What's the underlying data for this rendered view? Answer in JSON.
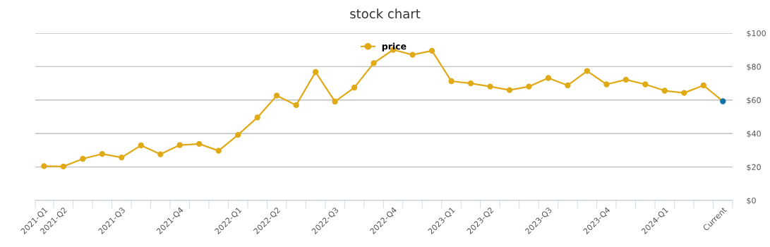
{
  "chart_data": {
    "type": "line",
    "title": "stock chart",
    "categories": [
      "2021-Q1",
      "2021-Q2",
      null,
      null,
      "2021-Q3",
      null,
      null,
      "2021-Q4",
      null,
      null,
      "2022-Q1",
      null,
      "2022-Q2",
      null,
      null,
      "2022-Q3",
      null,
      null,
      "2022-Q4",
      null,
      null,
      "2023-Q1",
      null,
      "2023-Q2",
      null,
      null,
      "2023-Q3",
      null,
      null,
      "2023-Q4",
      null,
      null,
      "2024-Q1",
      null,
      null,
      "Current"
    ],
    "series": [
      {
        "name": "price",
        "color": "#e0a916",
        "colors": [
          "#e0a916",
          "#e0a916",
          "#e0a916",
          "#e0a916",
          "#e0a916",
          "#e0a916",
          "#e0a916",
          "#e0a916",
          "#e0a916",
          "#e0a916",
          "#e0a916",
          "#e0a916",
          "#e0a916",
          "#e0a916",
          "#e0a916",
          "#e0a916",
          "#e0a916",
          "#e0a916",
          "#e0a916",
          "#e0a916",
          "#e0a916",
          "#e0a916",
          "#e0a916",
          "#e0a916",
          "#e0a916",
          "#e0a916",
          "#e0a916",
          "#e0a916",
          "#e0a916",
          "#e0a916",
          "#e0a916",
          "#e0a916",
          "#e0a916",
          "#e0a916",
          "#e0a916",
          "#0f72a8"
        ],
        "values": [
          20.5,
          20.3,
          24.9,
          27.8,
          25.7,
          32.9,
          27.6,
          33.1,
          33.8,
          29.7,
          39.2,
          49.6,
          62.7,
          57.0,
          76.8,
          59.1,
          67.5,
          82.1,
          90.1,
          87.1,
          89.5,
          71.3,
          70.0,
          68.1,
          66.0,
          68.1,
          73.2,
          68.8,
          77.4,
          69.4,
          72.2,
          69.4,
          65.6,
          64.3,
          68.8,
          59.3
        ]
      }
    ],
    "ylim": [
      0,
      100
    ],
    "yticks": [
      {
        "value": 0,
        "label": "$0"
      },
      {
        "value": 20,
        "label": "$20"
      },
      {
        "value": 40,
        "label": "$40"
      },
      {
        "value": 60,
        "label": "$60"
      },
      {
        "value": 80,
        "label": "$80"
      },
      {
        "value": 100,
        "label": "$100"
      }
    ],
    "grid": "y",
    "legend": "top",
    "marker": "circle",
    "line_style": "solid"
  }
}
